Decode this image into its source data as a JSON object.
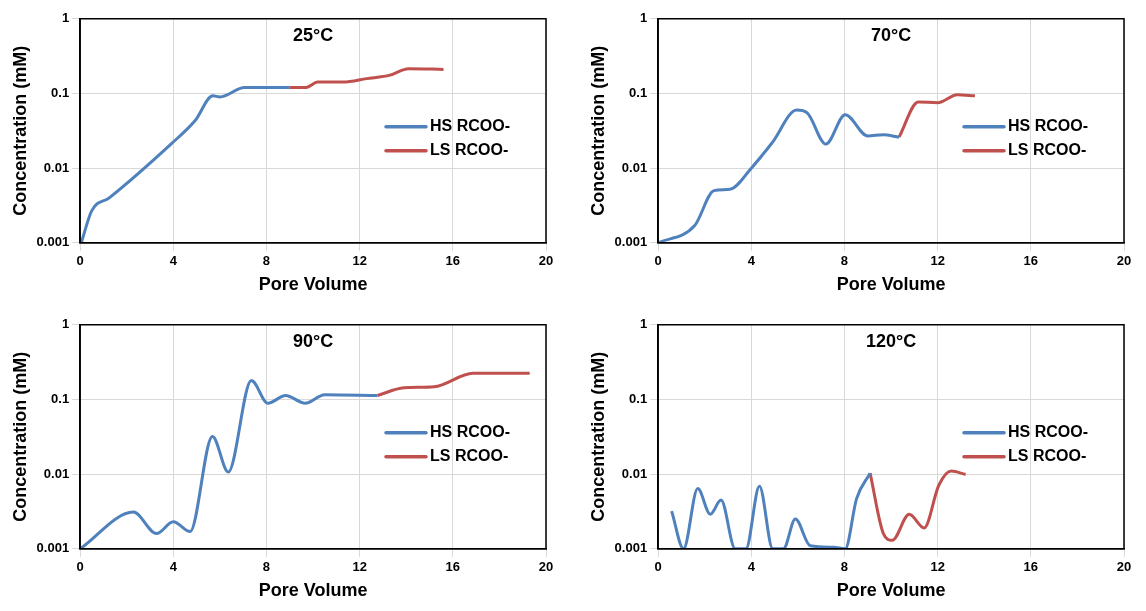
{
  "chart_data": [
    {
      "type": "line",
      "title": "25°C",
      "xlabel": "Pore Volume",
      "ylabel": "Concentration (mM)",
      "log": "y",
      "grid": true,
      "legend": "right",
      "xlim": [
        0,
        20
      ],
      "xticks": [
        0,
        4,
        8,
        12,
        16,
        20
      ],
      "ylim": [
        0.001,
        1
      ],
      "yticks": [
        0.001,
        0.01,
        0.1,
        1
      ],
      "series": [
        {
          "name": "HS RCOO-",
          "color": "#4f81bd",
          "x": [
            0.05,
            0.5,
            1.25,
            3.9,
            4.93,
            5.7,
            6.0,
            7.06,
            9.0
          ],
          "values": [
            0.001,
            0.0027,
            0.004,
            0.021,
            0.043,
            0.093,
            0.09,
            0.12,
            0.12
          ]
        },
        {
          "name": "LS RCOO-",
          "color": "#c0504d",
          "x": [
            9.0,
            9.7,
            10.2,
            11.3,
            12.3,
            13.3,
            14.1,
            15.6
          ],
          "values": [
            0.12,
            0.12,
            0.142,
            0.142,
            0.158,
            0.176,
            0.215,
            0.21
          ]
        }
      ]
    },
    {
      "type": "line",
      "title": "70°C",
      "xlabel": "Pore Volume",
      "ylabel": "Concentration (mM)",
      "log": "y",
      "grid": true,
      "legend": "right",
      "xlim": [
        0,
        20
      ],
      "xticks": [
        0,
        4,
        8,
        12,
        16,
        20
      ],
      "ylim": [
        0.001,
        1
      ],
      "yticks": [
        0.001,
        0.01,
        0.1,
        1
      ],
      "series": [
        {
          "name": "HS RCOO-",
          "color": "#4f81bd",
          "x": [
            0,
            1.57,
            2.4,
            3.08,
            4.0,
            4.9,
            5.95,
            6.4,
            7.2,
            8.03,
            9.0,
            9.66,
            10.34
          ],
          "values": [
            0.001,
            0.0017,
            0.005,
            0.0052,
            0.01,
            0.022,
            0.06,
            0.055,
            0.021,
            0.052,
            0.027,
            0.028,
            0.026
          ]
        },
        {
          "name": "LS RCOO-",
          "color": "#c0504d",
          "x": [
            10.34,
            11.17,
            12.0,
            12.84,
            13.6
          ],
          "values": [
            0.026,
            0.077,
            0.075,
            0.096,
            0.093
          ]
        }
      ]
    },
    {
      "type": "line",
      "title": "90°C",
      "xlabel": "Pore Volume",
      "ylabel": "Concentration (mM)",
      "log": "y",
      "grid": true,
      "legend": "right",
      "xlim": [
        0,
        20
      ],
      "xticks": [
        0,
        4,
        8,
        12,
        16,
        20
      ],
      "ylim": [
        0.001,
        1
      ],
      "yticks": [
        0.001,
        0.01,
        0.1,
        1
      ],
      "series": [
        {
          "name": "HS RCOO-",
          "color": "#4f81bd",
          "x": [
            0,
            2.29,
            3.28,
            4.0,
            4.72,
            5.68,
            6.36,
            7.35,
            8.06,
            8.82,
            9.66,
            10.5,
            12.77
          ],
          "values": [
            0.001,
            0.0031,
            0.0016,
            0.0023,
            0.0017,
            0.032,
            0.0107,
            0.18,
            0.089,
            0.113,
            0.089,
            0.116,
            0.113
          ]
        },
        {
          "name": "LS RCOO-",
          "color": "#c0504d",
          "x": [
            12.77,
            13.9,
            15.2,
            16.87,
            19.3
          ],
          "values": [
            0.113,
            0.143,
            0.148,
            0.224,
            0.224
          ]
        }
      ]
    },
    {
      "type": "line",
      "title": "120°C",
      "xlabel": "Pore Volume",
      "ylabel": "Concentration (mM)",
      "log": "y",
      "grid": true,
      "legend": "right",
      "xlim": [
        0,
        20
      ],
      "xticks": [
        0,
        4,
        8,
        12,
        16,
        20
      ],
      "ylim": [
        0.001,
        1
      ],
      "yticks": [
        0.001,
        0.01,
        0.1,
        1
      ],
      "series": [
        {
          "name": "HS RCOO-",
          "color": "#4f81bd",
          "x": [
            0.58,
            1.09,
            1.7,
            2.24,
            2.7,
            3.31,
            3.77,
            4.35,
            4.92,
            5.38,
            5.89,
            6.53,
            7.53,
            8.03,
            8.52,
            9.1
          ],
          "values": [
            0.0032,
            0.001,
            0.0064,
            0.0029,
            0.0045,
            0.001,
            0.001,
            0.0069,
            0.001,
            0.001,
            0.0025,
            0.0011,
            0.00105,
            0.001,
            0.0047,
            0.0103
          ]
        },
        {
          "name": "LS RCOO-",
          "color": "#c0504d",
          "x": [
            9.1,
            9.67,
            10.05,
            10.78,
            11.42,
            12.05,
            12.58,
            13.2
          ],
          "values": [
            0.0103,
            0.0016,
            0.0013,
            0.0029,
            0.0019,
            0.0071,
            0.011,
            0.0099
          ]
        }
      ]
    }
  ]
}
